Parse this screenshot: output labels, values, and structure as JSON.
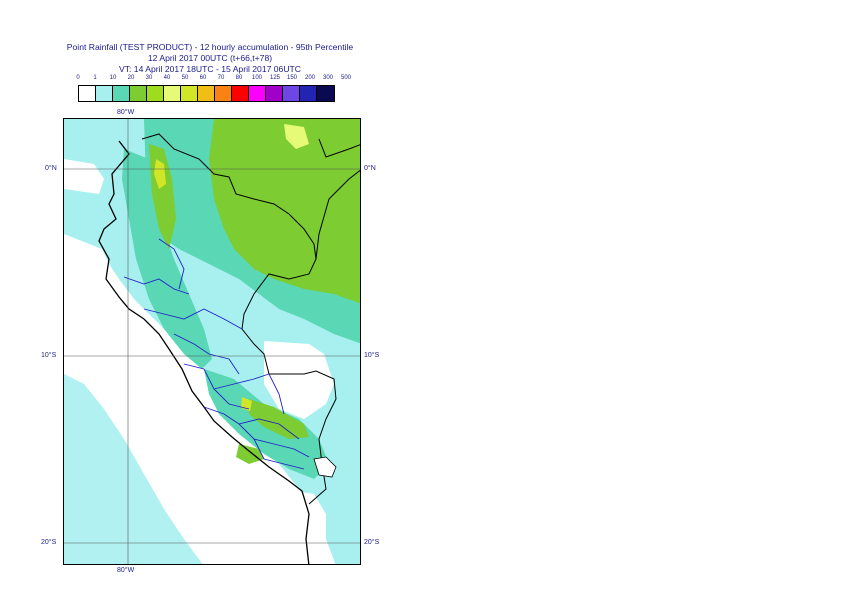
{
  "header": {
    "line1": "Point Rainfall (TEST PRODUCT) - 12 hourly accumulation - 95th Percentile",
    "line2": "12 April 2017 00UTC (t+66,t+78)",
    "line3": "VT: 14 April 2017 18UTC - 15 April 2017 06UTC"
  },
  "legend": {
    "ticks": [
      "0",
      "1",
      "10",
      "20",
      "30",
      "40",
      "50",
      "60",
      "70",
      "80",
      "100",
      "125",
      "150",
      "200",
      "300",
      "500"
    ],
    "colors": [
      "#ffffff",
      "#a8f0f0",
      "#5ad7b4",
      "#7ccc32",
      "#a0dc1e",
      "#e6fa78",
      "#d2e628",
      "#f0be14",
      "#fa8214",
      "#fa0000",
      "#fa00fa",
      "#a000c8",
      "#6e46e6",
      "#2323b4",
      "#0a0a50"
    ]
  },
  "map": {
    "lon_labels": {
      "top": "80°W",
      "bottom": "80°W"
    },
    "lat_labels": [
      {
        "left": "0°N",
        "right": "0°N"
      },
      {
        "left": "10°S",
        "right": "10°S"
      },
      {
        "left": "20°S",
        "right": "20°S"
      }
    ]
  }
}
